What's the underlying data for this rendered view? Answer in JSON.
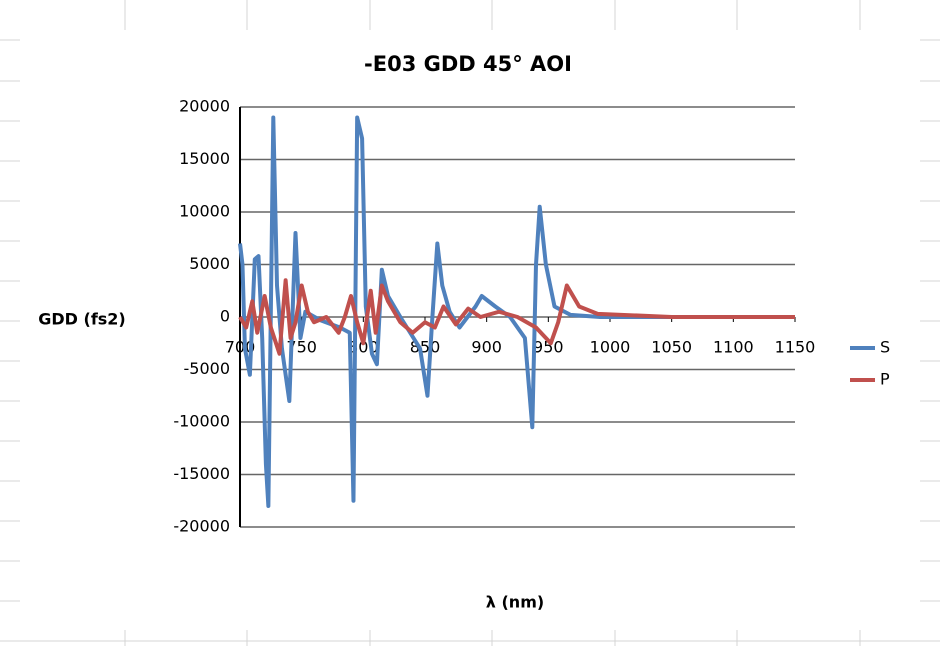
{
  "chart_data": {
    "type": "line",
    "title": "-E03 GDD 45° AOI",
    "x_label": "λ (nm)",
    "y_label": "GDD (fs2)",
    "xlim": [
      700,
      1150
    ],
    "xticks": [
      700,
      750,
      800,
      850,
      900,
      950,
      1000,
      1050,
      1100,
      1150
    ],
    "ylim": [
      -20000,
      20000
    ],
    "yticks": [
      -20000,
      -15000,
      -10000,
      -5000,
      0,
      5000,
      10000,
      15000,
      20000
    ],
    "grid": true,
    "legend": "right",
    "series": [
      {
        "name": "S",
        "color": "#4f81bd",
        "x": [
          700,
          702,
          704,
          708,
          712,
          715,
          718,
          721,
          723,
          727,
          730,
          734,
          740,
          745,
          749,
          753,
          765,
          781,
          789,
          792,
          795,
          799,
          802,
          807,
          811,
          815,
          820,
          830,
          846,
          852,
          856,
          860,
          864,
          870,
          878,
          891,
          896,
          907,
          919,
          931,
          937,
          940,
          943,
          948,
          955,
          968,
          992,
          1150
        ],
        "values": [
          7000,
          5000,
          -3000,
          -5500,
          5500,
          5800,
          -2000,
          -14000,
          -18000,
          19000,
          3000,
          -3000,
          -8000,
          8000,
          -2000,
          500,
          -300,
          -1000,
          -1500,
          -17500,
          19000,
          17000,
          1000,
          -3500,
          -4500,
          4500,
          2000,
          0,
          -3000,
          -7500,
          0,
          7000,
          3000,
          500,
          -1000,
          1000,
          2000,
          1000,
          0,
          -2000,
          -10500,
          5000,
          10500,
          5000,
          1000,
          200,
          0,
          0
        ]
      },
      {
        "name": "P",
        "color": "#c0504d",
        "x": [
          700,
          705,
          710,
          714,
          720,
          725,
          732,
          737,
          741,
          745,
          750,
          755,
          760,
          770,
          780,
          785,
          790,
          795,
          800,
          803,
          806,
          810,
          815,
          820,
          830,
          840,
          850,
          858,
          865,
          875,
          885,
          895,
          910,
          925,
          940,
          952,
          958,
          965,
          975,
          990,
          1050,
          1150
        ],
        "values": [
          0,
          -1000,
          1500,
          -1500,
          2000,
          -1000,
          -3500,
          3500,
          -2000,
          -500,
          3000,
          500,
          -500,
          0,
          -1500,
          0,
          2000,
          -500,
          -2500,
          0,
          2500,
          -1500,
          3000,
          1500,
          -500,
          -1500,
          -500,
          -1000,
          1000,
          -700,
          800,
          0,
          500,
          0,
          -1000,
          -2500,
          -500,
          3000,
          1000,
          300,
          0,
          0
        ]
      }
    ]
  }
}
